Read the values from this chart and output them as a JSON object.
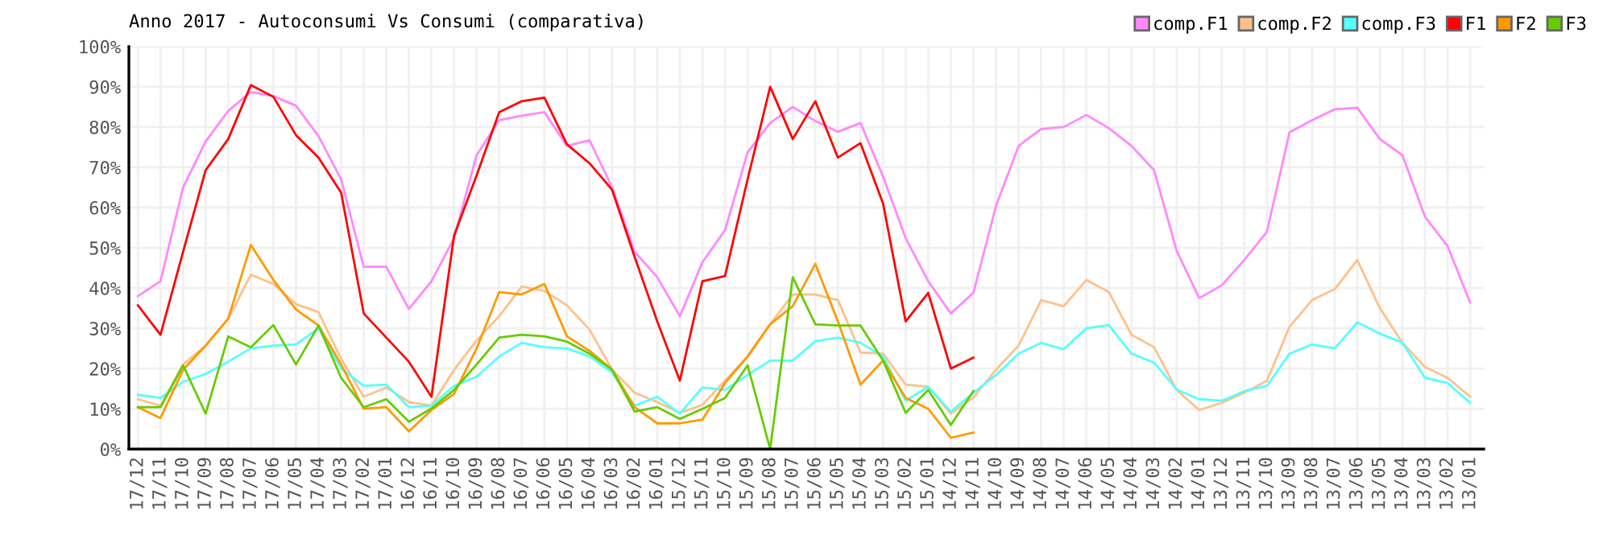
{
  "chart_data": {
    "type": "line",
    "title": "Anno 2017 - Autoconsumi Vs Consumi (comparativa)",
    "categories": [
      "17/12",
      "17/11",
      "17/10",
      "17/09",
      "17/08",
      "17/07",
      "17/06",
      "17/05",
      "17/04",
      "17/03",
      "17/02",
      "17/01",
      "16/12",
      "16/11",
      "16/10",
      "16/09",
      "16/08",
      "16/07",
      "16/06",
      "16/05",
      "16/04",
      "16/03",
      "16/02",
      "16/01",
      "15/12",
      "15/11",
      "15/10",
      "15/09",
      "15/08",
      "15/07",
      "15/06",
      "15/05",
      "15/04",
      "15/03",
      "15/02",
      "15/01",
      "14/12",
      "14/11",
      "14/10",
      "14/09",
      "14/08",
      "14/07",
      "14/06",
      "14/05",
      "14/04",
      "14/03",
      "14/02",
      "14/01",
      "13/12",
      "13/11",
      "13/10",
      "13/09",
      "13/08",
      "13/07",
      "13/06",
      "13/05",
      "13/04",
      "13/03",
      "13/02",
      "13/01"
    ],
    "series": [
      {
        "name": "comp.F1",
        "color": "#ff88ff",
        "values": [
          38,
          41.7,
          65,
          76.4,
          84,
          88.7,
          87.7,
          85.3,
          77.7,
          67,
          45.3,
          45.3,
          34.8,
          41.7,
          52.4,
          73,
          81.7,
          82.8,
          83.7,
          75.3,
          76.7,
          65,
          49,
          42.7,
          33,
          46.4,
          54.4,
          73.7,
          81,
          85,
          81.5,
          78.8,
          81,
          67.7,
          52.4,
          41.7,
          33.7,
          38.8,
          60.4,
          75.3,
          79.5,
          80,
          83,
          79.7,
          75.3,
          69.3,
          49.3,
          37.5,
          40.7,
          47,
          54,
          78.7,
          81.7,
          84.4,
          84.8,
          77,
          73,
          57.7,
          50.4,
          36.4
        ]
      },
      {
        "name": "comp.F2",
        "color": "#ffc08a",
        "values": [
          12.4,
          10.8,
          21,
          25.7,
          32.4,
          43.3,
          41,
          36,
          34,
          22.4,
          13,
          15.3,
          11.7,
          10.8,
          19.7,
          27,
          33,
          40.4,
          39.3,
          35.7,
          29.7,
          19.7,
          14,
          11.7,
          9,
          11,
          17,
          23,
          31,
          38.4,
          38.4,
          37,
          24,
          23.7,
          16,
          15.5,
          8.8,
          12.8,
          19.7,
          25.7,
          37,
          35.5,
          42,
          39,
          28.4,
          25.3,
          14.7,
          9.7,
          11.5,
          14,
          17,
          30.4,
          37,
          39.7,
          47,
          35,
          26.4,
          20.4,
          17.7,
          13
        ]
      },
      {
        "name": "comp.F3",
        "color": "#55ffff",
        "values": [
          13.5,
          12.7,
          16.7,
          18.7,
          21.7,
          25,
          25.7,
          26,
          30,
          20,
          15.7,
          16,
          10.4,
          10.8,
          15.7,
          18,
          23,
          26.4,
          25.3,
          25,
          23,
          19,
          10.8,
          13,
          8.8,
          15.3,
          14.7,
          18.4,
          22,
          22,
          26.8,
          27.7,
          26.4,
          23,
          12,
          15.5,
          9.3,
          14,
          18.4,
          23.7,
          26.4,
          24.8,
          30,
          30.8,
          23.7,
          21.5,
          14.8,
          12.4,
          12,
          14.4,
          15.7,
          23.7,
          26,
          25,
          31.5,
          28.7,
          26.4,
          17.7,
          16.4,
          11.5
        ]
      },
      {
        "name": "F1",
        "color": "#ff0000",
        "values": [
          35.7,
          28.4,
          49,
          69.3,
          77,
          90.4,
          87.5,
          78,
          72.4,
          63.7,
          33.7,
          27.7,
          21.7,
          13,
          53,
          68,
          83.7,
          86.4,
          87.3,
          75.7,
          71,
          64.4,
          47.7,
          31.7,
          17,
          41.7,
          43,
          67,
          90,
          77,
          86.4,
          72.4,
          76,
          61,
          31.7,
          38.8,
          20,
          22.7,
          null,
          null,
          null,
          null,
          null,
          null,
          null,
          null,
          null,
          null,
          null,
          null,
          null,
          null,
          null,
          null,
          null,
          null,
          null,
          null,
          null,
          null
        ]
      },
      {
        "name": "F2",
        "color": "#ff9900",
        "values": [
          10.4,
          7.7,
          19.7,
          25.7,
          32.4,
          50.7,
          42,
          34.7,
          30.7,
          21,
          10,
          10.4,
          4.4,
          9.7,
          13.7,
          25,
          39,
          38.4,
          41,
          28,
          24.4,
          19.7,
          10.4,
          6.4,
          6.4,
          7.3,
          16.4,
          23,
          31,
          35.5,
          46,
          31.7,
          16,
          22,
          12.7,
          10,
          2.8,
          4.1,
          null,
          null,
          null,
          null,
          null,
          null,
          null,
          null,
          null,
          null,
          null,
          null,
          null,
          null,
          null,
          null,
          null,
          null,
          null,
          null,
          null,
          null
        ]
      },
      {
        "name": "F3",
        "color": "#66cc00",
        "values": [
          10.4,
          10.4,
          20.8,
          8.8,
          28,
          25.3,
          30.8,
          21,
          30.7,
          17.7,
          10.4,
          12.4,
          6.8,
          10.1,
          14.7,
          21,
          27.7,
          28.4,
          28,
          26.7,
          23.7,
          19.7,
          9.3,
          10.4,
          7.5,
          10,
          12.7,
          20.8,
          0,
          42.7,
          31,
          30.7,
          30.7,
          22,
          9,
          14.7,
          6,
          14.4,
          null,
          null,
          null,
          null,
          null,
          null,
          null,
          null,
          null,
          null,
          null,
          null,
          null,
          null,
          null,
          null,
          null,
          null,
          null,
          null,
          null,
          null
        ]
      }
    ],
    "ylim": [
      0,
      100
    ],
    "yticks": [
      {
        "value": 0,
        "label": "0%"
      },
      {
        "value": 10,
        "label": "10%"
      },
      {
        "value": 20,
        "label": "20%"
      },
      {
        "value": 30,
        "label": "30%"
      },
      {
        "value": 40,
        "label": "40%"
      },
      {
        "value": 50,
        "label": "50%"
      },
      {
        "value": 60,
        "label": "60%"
      },
      {
        "value": 70,
        "label": "70%"
      },
      {
        "value": 80,
        "label": "80%"
      },
      {
        "value": 90,
        "label": "90%"
      },
      {
        "value": 100,
        "label": "100%"
      }
    ],
    "grid": true,
    "legend": "top right",
    "marker": "none",
    "line_style": "solid"
  }
}
